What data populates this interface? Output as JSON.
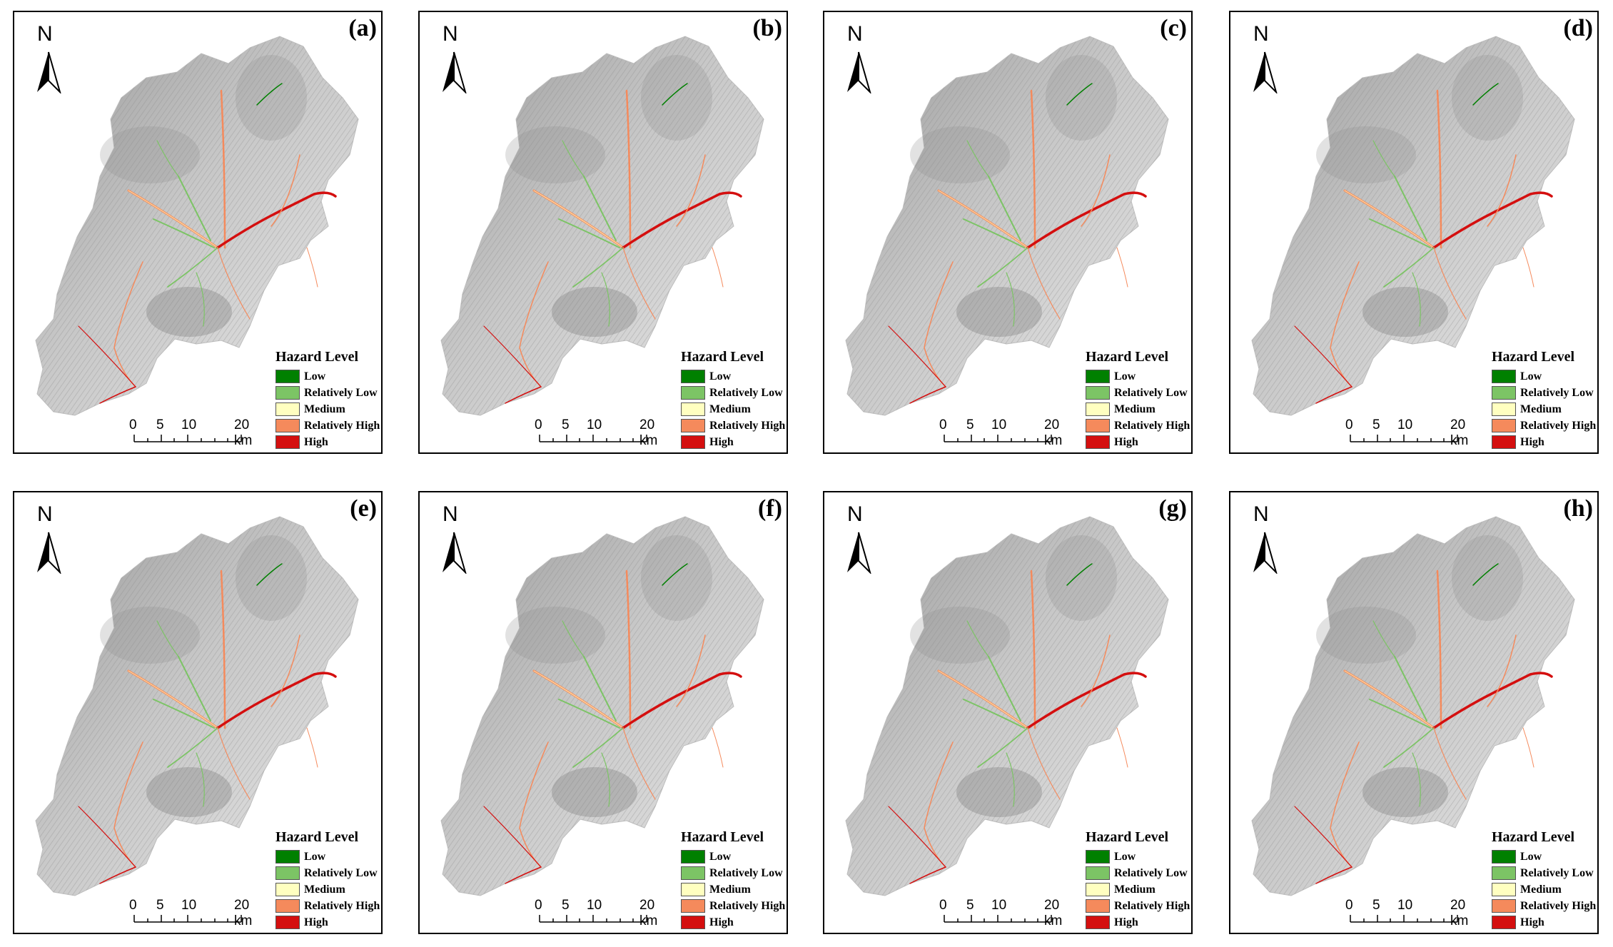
{
  "north_label": "N",
  "legend": {
    "title": "Hazard Level",
    "items": [
      {
        "label": "Low",
        "color": "#008000"
      },
      {
        "label": "Relatively Low",
        "color": "#7cc465"
      },
      {
        "label": "Medium",
        "color": "#ffffc0"
      },
      {
        "label": "Relatively High",
        "color": "#f58a5c"
      },
      {
        "label": "High",
        "color": "#d40f0f"
      }
    ]
  },
  "scale_bar": {
    "ticks": [
      "0",
      "5",
      "10",
      "20 km"
    ]
  },
  "panels": [
    {
      "label": "(a)"
    },
    {
      "label": "(b)"
    },
    {
      "label": "(c)"
    },
    {
      "label": "(d)"
    },
    {
      "label": "(e)"
    },
    {
      "label": "(f)"
    },
    {
      "label": "(g)"
    },
    {
      "label": "(h)"
    }
  ]
}
